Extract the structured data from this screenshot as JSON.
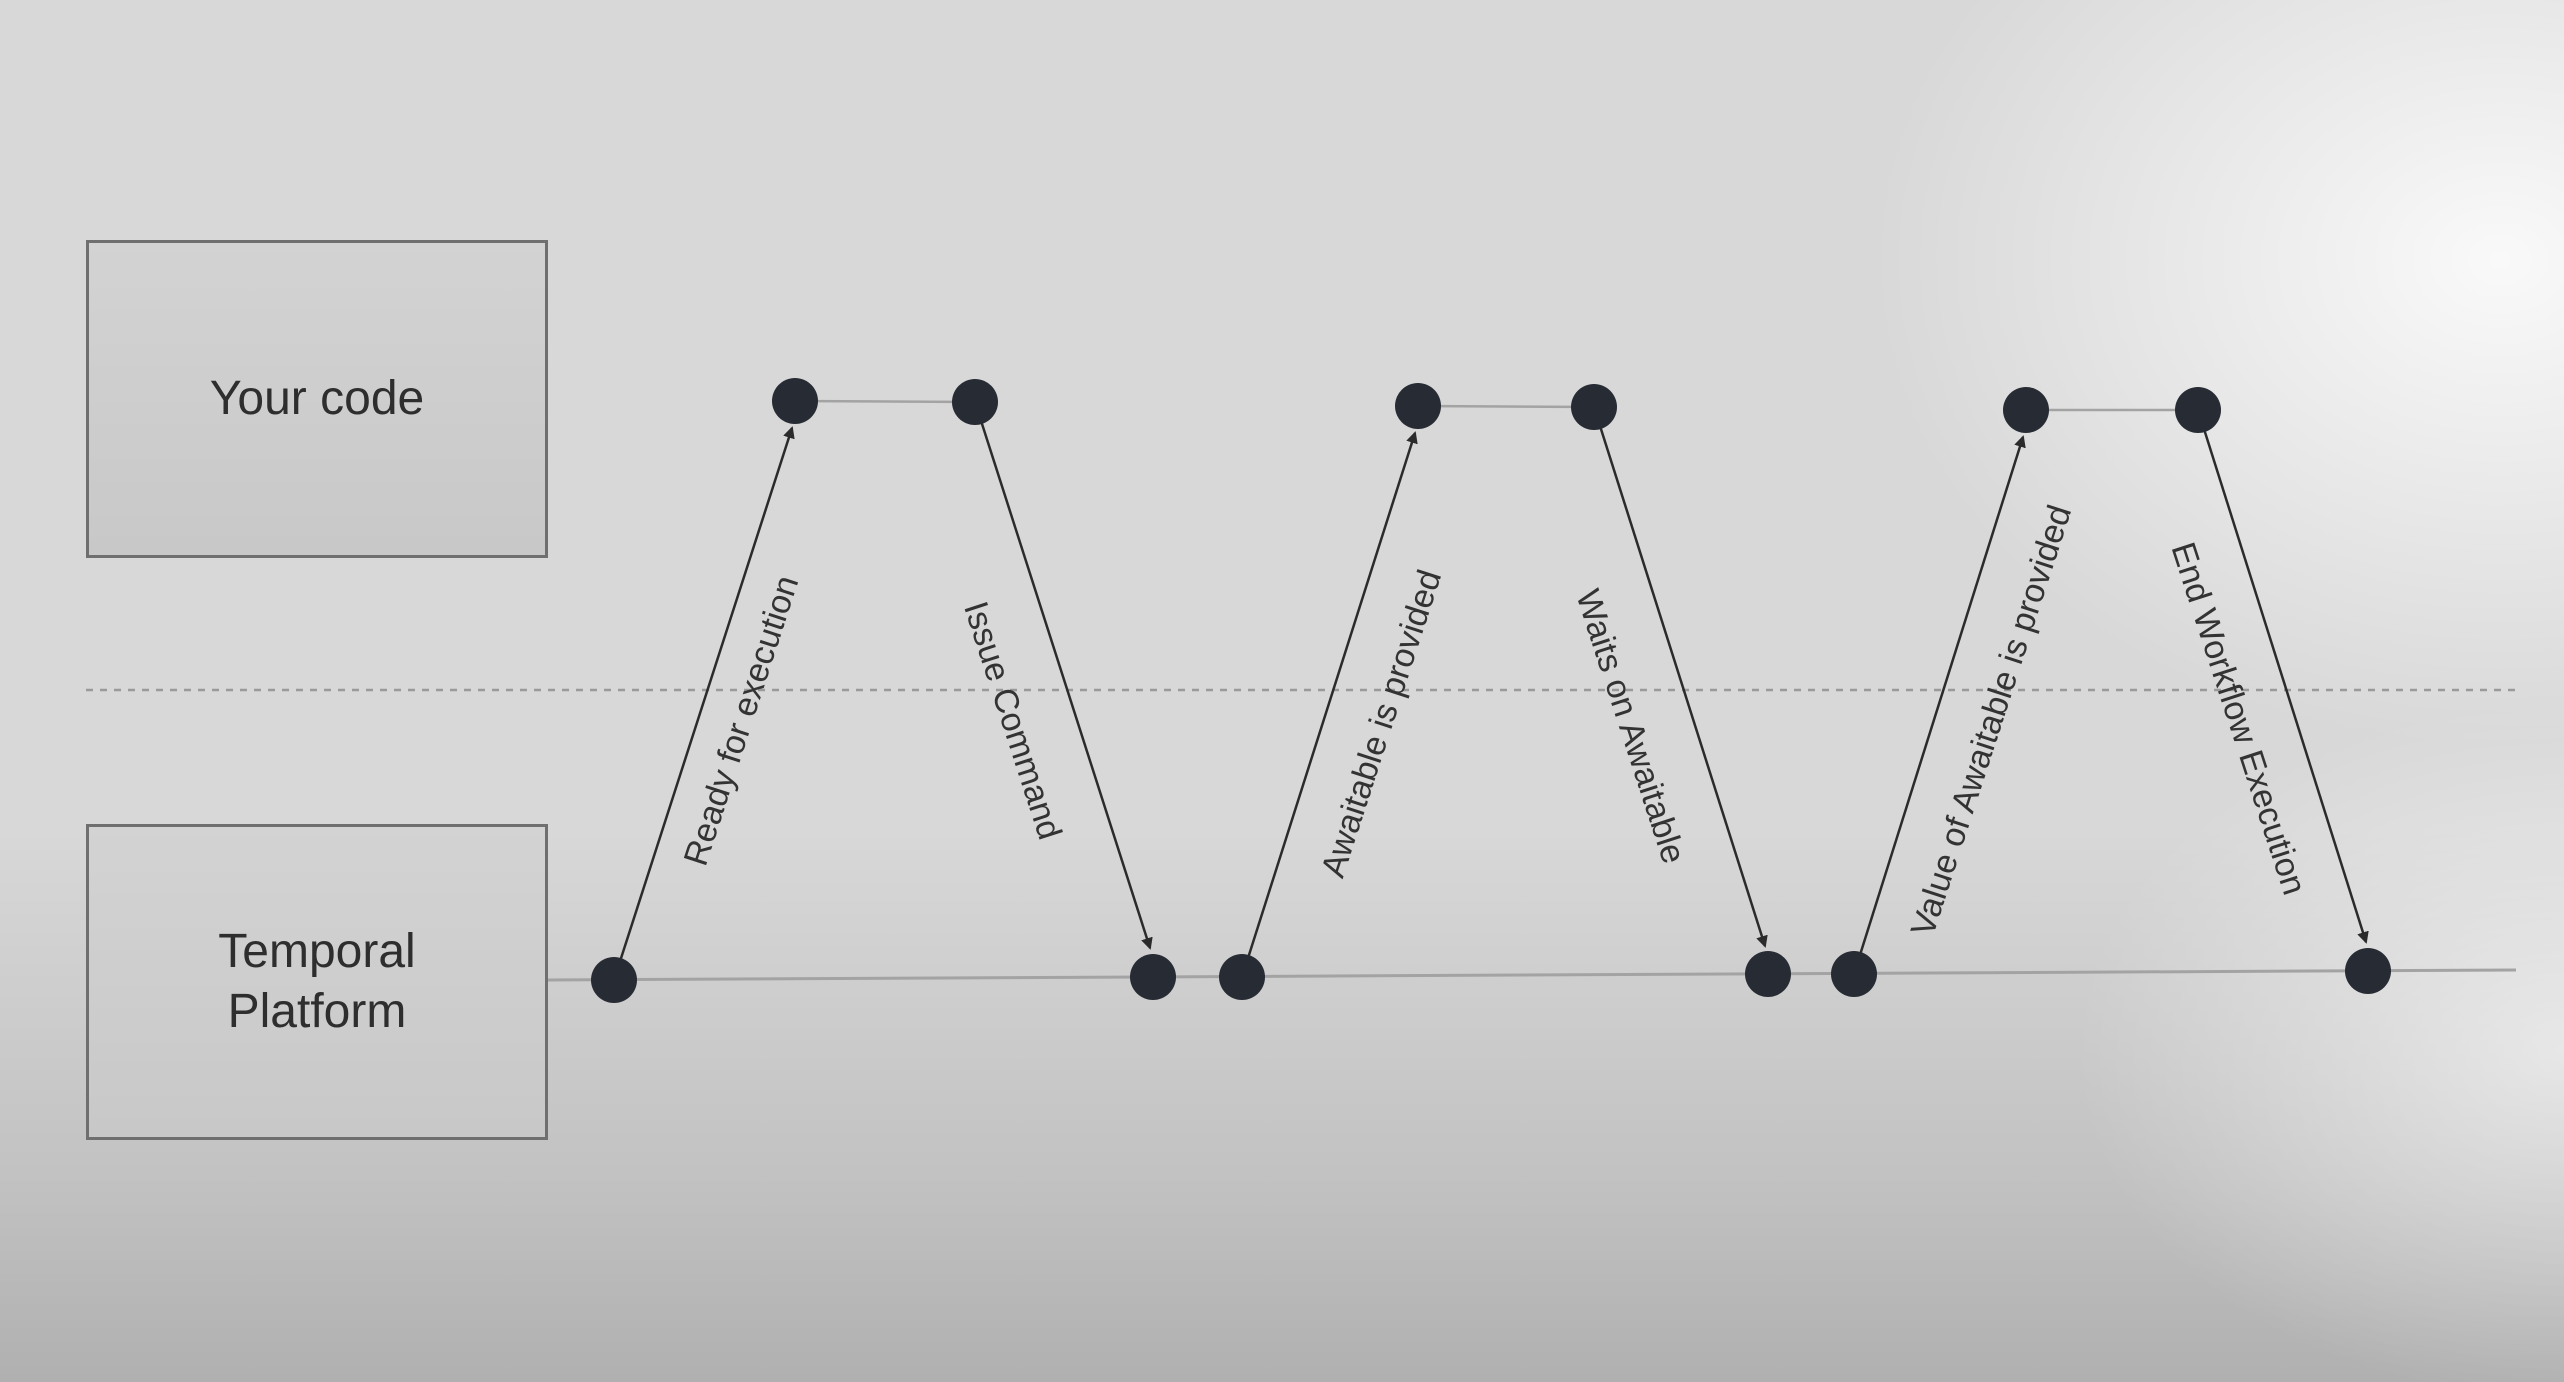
{
  "actors": {
    "your_code": "Your code",
    "platform": "Temporal\nPlatform"
  },
  "transitions": [
    {
      "label": "Ready for execution",
      "direction": "up"
    },
    {
      "label": "Issue Command",
      "direction": "down"
    },
    {
      "label": "Awaitable is provided",
      "direction": "up"
    },
    {
      "label": "Waits on Awaitable",
      "direction": "down"
    },
    {
      "label": "Value of Awaitable is provided",
      "direction": "up"
    },
    {
      "label": "End Workflow Execution",
      "direction": "down"
    }
  ],
  "colors": {
    "node": "#272b33",
    "line": "#a3a3a3",
    "arrow": "#2b2b2b",
    "divider": "#9a9a9a"
  }
}
